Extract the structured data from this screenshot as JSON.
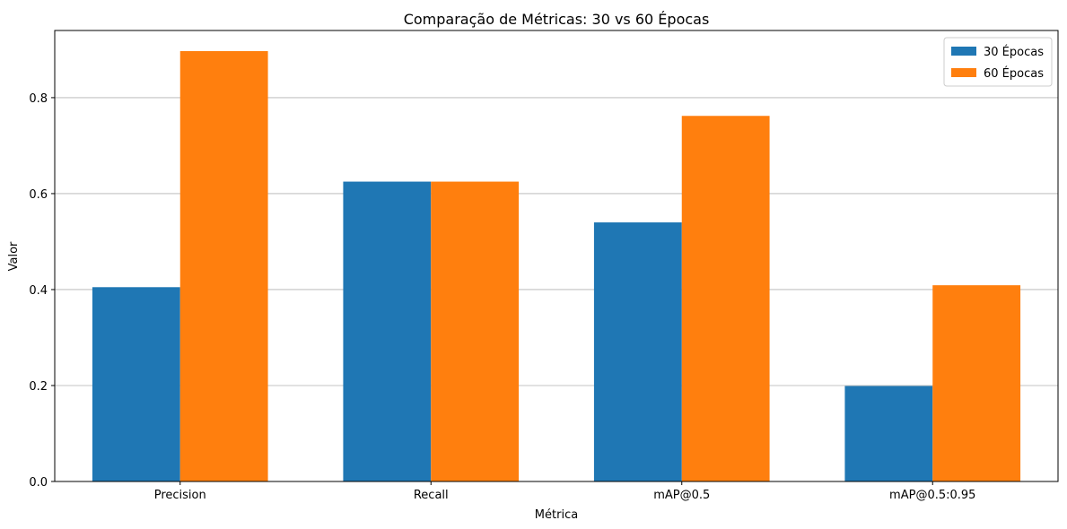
{
  "chart_data": {
    "type": "bar",
    "title": "Comparação de Métricas: 30 vs 60 Épocas",
    "xlabel": "Métrica",
    "ylabel": "Valor",
    "categories": [
      "Precision",
      "Recall",
      "mAP@0.5",
      "mAP@0.5:0.95"
    ],
    "series": [
      {
        "name": "30 Épocas",
        "color": "#1f77b4",
        "values": [
          0.405,
          0.625,
          0.54,
          0.199
        ]
      },
      {
        "name": "60 Épocas",
        "color": "#ff7f0e",
        "values": [
          0.897,
          0.625,
          0.762,
          0.409
        ]
      }
    ],
    "ylim": [
      0,
      0.94
    ],
    "yticks": [
      0.0,
      0.2,
      0.4,
      0.6,
      0.8
    ],
    "ytick_labels": [
      "0.0",
      "0.2",
      "0.4",
      "0.6",
      "0.8"
    ],
    "grid": "y",
    "legend_position": "top-right"
  }
}
